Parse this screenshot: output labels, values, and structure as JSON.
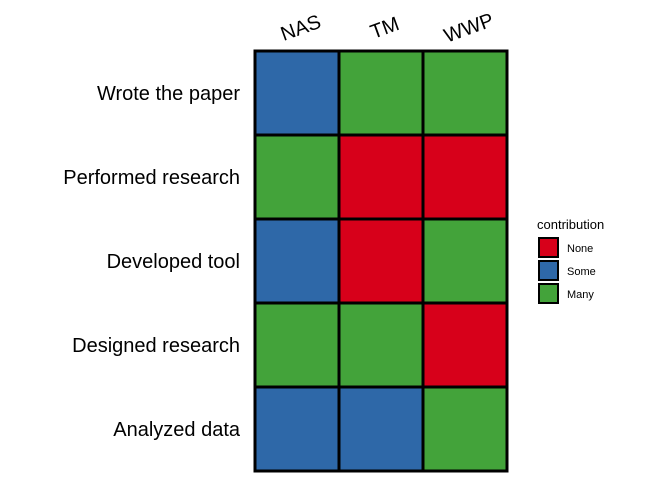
{
  "chart_data": {
    "type": "heatmap",
    "title": "",
    "xlabel": "",
    "ylabel": "",
    "x_categories": [
      "NAS",
      "TM",
      "WWP"
    ],
    "y_categories": [
      "Wrote the paper",
      "Performed research",
      "Developed tool",
      "Designed research",
      "Analyzed data"
    ],
    "cells": [
      [
        "Some",
        "Many",
        "Many"
      ],
      [
        "Many",
        "None",
        "None"
      ],
      [
        "Some",
        "None",
        "Many"
      ],
      [
        "Many",
        "Many",
        "None"
      ],
      [
        "Some",
        "Some",
        "Many"
      ]
    ],
    "legend": {
      "title": "contribution",
      "placement": "right",
      "entries": [
        {
          "label": "None",
          "color": "#d7001a"
        },
        {
          "label": "Some",
          "color": "#2e68a8"
        },
        {
          "label": "Many",
          "color": "#43a33a"
        }
      ]
    },
    "grid": false
  }
}
